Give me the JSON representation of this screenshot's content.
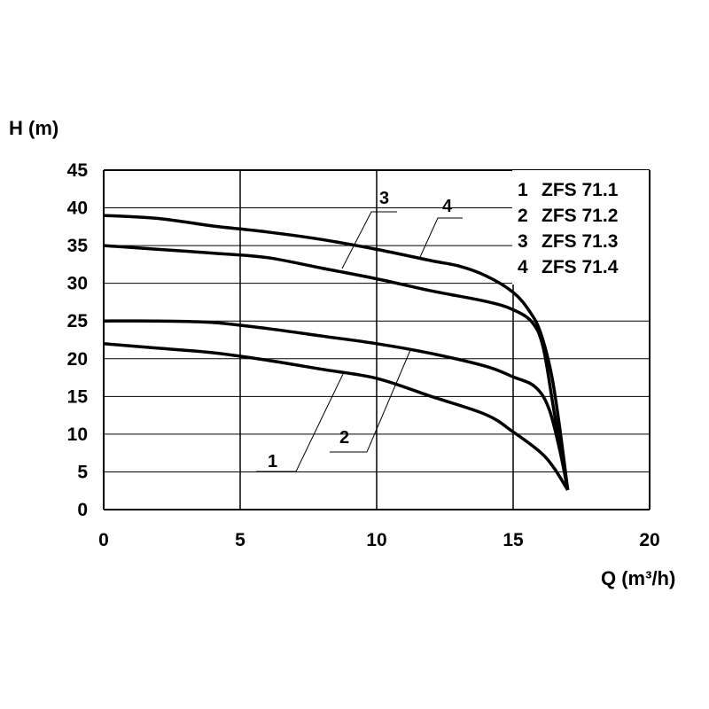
{
  "chart_data": {
    "type": "line",
    "xlabel": "Q (m³/h)",
    "ylabel": "H (m)",
    "xlim": [
      0,
      20
    ],
    "ylim": [
      0,
      45
    ],
    "xticks": [
      "0",
      "5",
      "10",
      "15",
      "20"
    ],
    "yticks": [
      "0",
      "5",
      "10",
      "15",
      "20",
      "25",
      "30",
      "35",
      "40",
      "45"
    ],
    "grid": true,
    "legend_position": "top-right",
    "series": [
      {
        "name": "ZFS 71.1",
        "label": "1",
        "x": [
          0,
          2,
          4,
          6,
          8,
          10,
          12,
          14,
          15,
          16,
          16.5,
          17
        ],
        "y": [
          22,
          21.4,
          20.8,
          19.8,
          18.6,
          17.4,
          15,
          12.6,
          10.3,
          7.6,
          5.5,
          2.6
        ]
      },
      {
        "name": "ZFS 71.2",
        "label": "2",
        "x": [
          0,
          2,
          4,
          6,
          8,
          10,
          12,
          14,
          15,
          15.8,
          16.3,
          16.7,
          17
        ],
        "y": [
          25,
          25,
          24.8,
          24,
          23,
          22,
          20.7,
          19,
          17.6,
          16.3,
          13.5,
          8,
          2.6
        ]
      },
      {
        "name": "ZFS 71.3",
        "label": "3",
        "x": [
          0,
          2,
          4,
          6,
          8,
          10,
          12,
          14,
          15,
          15.7,
          16.1,
          16.5,
          17
        ],
        "y": [
          35,
          34.5,
          34,
          33.4,
          32,
          30.6,
          29,
          27.6,
          26.5,
          24.8,
          21.5,
          13,
          2.6
        ]
      },
      {
        "name": "ZFS 71.4",
        "label": "4",
        "x": [
          0,
          2,
          4,
          6,
          8,
          10,
          12,
          13,
          14,
          15,
          15.6,
          16,
          16.4,
          16.7,
          17
        ],
        "y": [
          39,
          38.6,
          37.6,
          36.8,
          35.8,
          34.5,
          33,
          32.3,
          31,
          28.8,
          26.3,
          23.5,
          18,
          11,
          2.6
        ]
      }
    ],
    "annotations": [
      "1",
      "2",
      "3",
      "4"
    ]
  }
}
